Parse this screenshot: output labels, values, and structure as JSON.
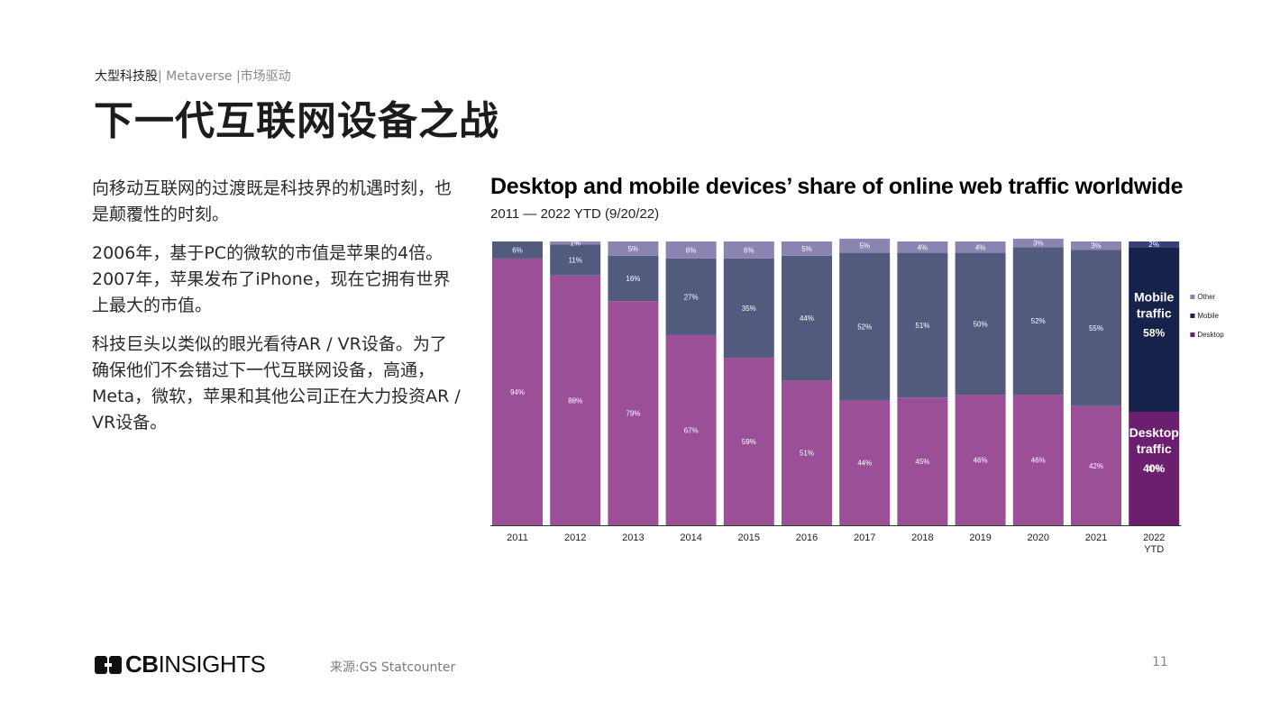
{
  "header": {
    "breadcrumb_main": "大型科技股",
    "breadcrumb_sub1": "| Metaverse",
    "breadcrumb_sub2": "|市场驱动",
    "title": "下一代互联网设备之战"
  },
  "body": {
    "paragraphs": [
      "向移动互联网的过渡既是科技界的机遇时刻，也是颠覆性的时刻。",
      "2006年，基于PC的微软的市值是苹果的4倍。2007年，苹果发布了iPhone，现在它拥有世界上最大的市值。",
      "科技巨头以类似的眼光看待AR / VR设备。为了确保他们不会错过下一代互联网设备，高通，Meta，微软，苹果和其他公司正在大力投资AR / VR设备。"
    ]
  },
  "footer": {
    "logo_bold": "CB",
    "logo_light": "INSIGHTS",
    "source": "来源:GS Statcounter",
    "page_number": "11"
  },
  "chart_data": {
    "type": "bar",
    "stacked": true,
    "title": "Desktop and mobile devices’ share of online web traffic worldwide",
    "subtitle": "2011 — 2022 YTD (9/20/22)",
    "categories": [
      "2011",
      "2012",
      "2013",
      "2014",
      "2015",
      "2016",
      "2017",
      "2018",
      "2019",
      "2020",
      "2021",
      "2022 YTD"
    ],
    "series": [
      {
        "name": "Desktop",
        "values": [
          94,
          88,
          79,
          67,
          59,
          51,
          44,
          45,
          46,
          46,
          42,
          40
        ],
        "color": "#9b4f96",
        "highlight_color": "#6b1f6e"
      },
      {
        "name": "Mobile",
        "values": [
          6,
          11,
          16,
          27,
          35,
          44,
          52,
          51,
          50,
          52,
          55,
          58
        ],
        "color": "#525b7e",
        "highlight_color": "#17224a"
      },
      {
        "name": "Other",
        "values": [
          0,
          1,
          5,
          6,
          6,
          5,
          5,
          4,
          4,
          3,
          3,
          2
        ],
        "color": "#8a84b3",
        "highlight_color": "#3a3f7a"
      }
    ],
    "labels": {
      "Desktop": [
        "94%",
        "88%",
        "79%",
        "67%",
        "59%",
        "51%",
        "44%",
        "45%",
        "46%",
        "46%",
        "42%",
        "40%"
      ],
      "Mobile": [
        "6%",
        "11%",
        "16%",
        "27%",
        "35%",
        "44%",
        "52%",
        "51%",
        "50%",
        "52%",
        "55%",
        ""
      ],
      "Other": [
        "",
        "1%",
        "5%",
        "6%",
        "6%",
        "5%",
        "5%",
        "4%",
        "4%",
        "3%",
        "3%",
        "2%"
      ]
    },
    "callouts": [
      {
        "series": "Mobile",
        "category": "2022 YTD",
        "lines": [
          "Mobile",
          "traffic",
          "58%"
        ]
      },
      {
        "series": "Desktop",
        "category": "2022 YTD",
        "lines": [
          "Desktop",
          "traffic",
          "40%"
        ]
      }
    ],
    "legend": {
      "position": "right",
      "items": [
        "Other",
        "Mobile",
        "Desktop"
      ]
    },
    "ylim": [
      0,
      100
    ],
    "grid": false
  }
}
